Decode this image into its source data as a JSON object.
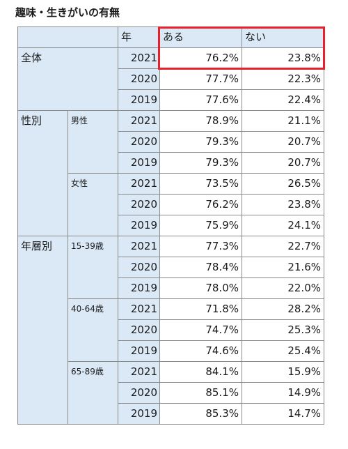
{
  "title": "趣味・生きがいの有無",
  "highlight_color": "#e8202b",
  "header": {
    "year_label": "年",
    "col_yes": "ある",
    "col_no": "ない"
  },
  "rows": [
    {
      "group": "全体",
      "sub": "",
      "year": "2021",
      "yes": "76.2%",
      "no": "23.8%"
    },
    {
      "group": "",
      "sub": "",
      "year": "2020",
      "yes": "77.7%",
      "no": "22.3%"
    },
    {
      "group": "",
      "sub": "",
      "year": "2019",
      "yes": "77.6%",
      "no": "22.4%"
    },
    {
      "group": "性別",
      "sub": "男性",
      "year": "2021",
      "yes": "78.9%",
      "no": "21.1%"
    },
    {
      "group": "",
      "sub": "",
      "year": "2020",
      "yes": "79.3%",
      "no": "20.7%"
    },
    {
      "group": "",
      "sub": "",
      "year": "2019",
      "yes": "79.3%",
      "no": "20.7%"
    },
    {
      "group": "",
      "sub": "女性",
      "year": "2021",
      "yes": "73.5%",
      "no": "26.5%"
    },
    {
      "group": "",
      "sub": "",
      "year": "2020",
      "yes": "76.2%",
      "no": "23.8%"
    },
    {
      "group": "",
      "sub": "",
      "year": "2019",
      "yes": "75.9%",
      "no": "24.1%"
    },
    {
      "group": "年層別",
      "sub": "15-39歳",
      "year": "2021",
      "yes": "77.3%",
      "no": "22.7%"
    },
    {
      "group": "",
      "sub": "",
      "year": "2020",
      "yes": "78.4%",
      "no": "21.6%"
    },
    {
      "group": "",
      "sub": "",
      "year": "2019",
      "yes": "78.0%",
      "no": "22.0%"
    },
    {
      "group": "",
      "sub": "40-64歳",
      "year": "2021",
      "yes": "71.8%",
      "no": "28.2%"
    },
    {
      "group": "",
      "sub": "",
      "year": "2020",
      "yes": "74.7%",
      "no": "25.3%"
    },
    {
      "group": "",
      "sub": "",
      "year": "2019",
      "yes": "74.6%",
      "no": "25.4%"
    },
    {
      "group": "",
      "sub": "65-89歳",
      "year": "2021",
      "yes": "84.1%",
      "no": "15.9%"
    },
    {
      "group": "",
      "sub": "",
      "year": "2020",
      "yes": "85.1%",
      "no": "14.9%"
    },
    {
      "group": "",
      "sub": "",
      "year": "2019",
      "yes": "85.3%",
      "no": "14.7%"
    }
  ]
}
